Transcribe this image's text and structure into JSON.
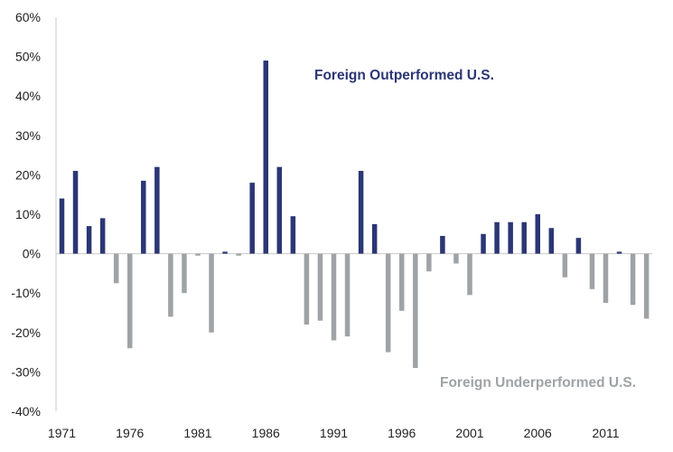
{
  "chart_data": {
    "type": "bar",
    "title": "",
    "xlabel": "",
    "ylabel": "",
    "x": [
      1971,
      1972,
      1973,
      1974,
      1975,
      1976,
      1977,
      1978,
      1979,
      1980,
      1981,
      1982,
      1983,
      1984,
      1985,
      1986,
      1987,
      1988,
      1989,
      1990,
      1991,
      1992,
      1993,
      1994,
      1995,
      1996,
      1997,
      1998,
      1999,
      2000,
      2001,
      2002,
      2003,
      2004,
      2005,
      2006,
      2007,
      2008,
      2009,
      2010,
      2011,
      2012,
      2013,
      2014
    ],
    "values": [
      14,
      21,
      7,
      9,
      -7.5,
      -24,
      18.5,
      22,
      -16,
      -10,
      -0.5,
      -20,
      0.5,
      -0.5,
      18,
      49,
      22,
      9.5,
      -18,
      -17,
      -22,
      -21,
      21,
      7.5,
      -25,
      -14.5,
      -29,
      -4.5,
      4.5,
      -2.5,
      -10.5,
      5,
      8,
      8,
      8,
      10,
      6.5,
      -6,
      4,
      -9,
      -12.5,
      0.5,
      -13,
      -16.5
    ],
    "ylim": [
      -40,
      60
    ],
    "y_ticks": [
      60,
      50,
      40,
      30,
      20,
      10,
      0,
      -10,
      -20,
      -30,
      -40
    ],
    "y_tick_labels": [
      "60%",
      "50%",
      "40%",
      "30%",
      "20%",
      "10%",
      "0%",
      "-10%",
      "-20%",
      "-30%",
      "-40%"
    ],
    "x_tick_labels": [
      "1971",
      "1976",
      "1981",
      "1986",
      "1991",
      "1996",
      "2001",
      "2006",
      "2011"
    ],
    "grid": false,
    "colors": {
      "positive": "#2b3674",
      "negative": "#9fa3a6",
      "axis": "#c8c8c8"
    },
    "annotations": [
      {
        "text": "Foreign Outperformed U.S.",
        "color": "#2b3674"
      },
      {
        "text": "Foreign Underperformed U.S.",
        "color": "#9fa3a6"
      }
    ]
  }
}
